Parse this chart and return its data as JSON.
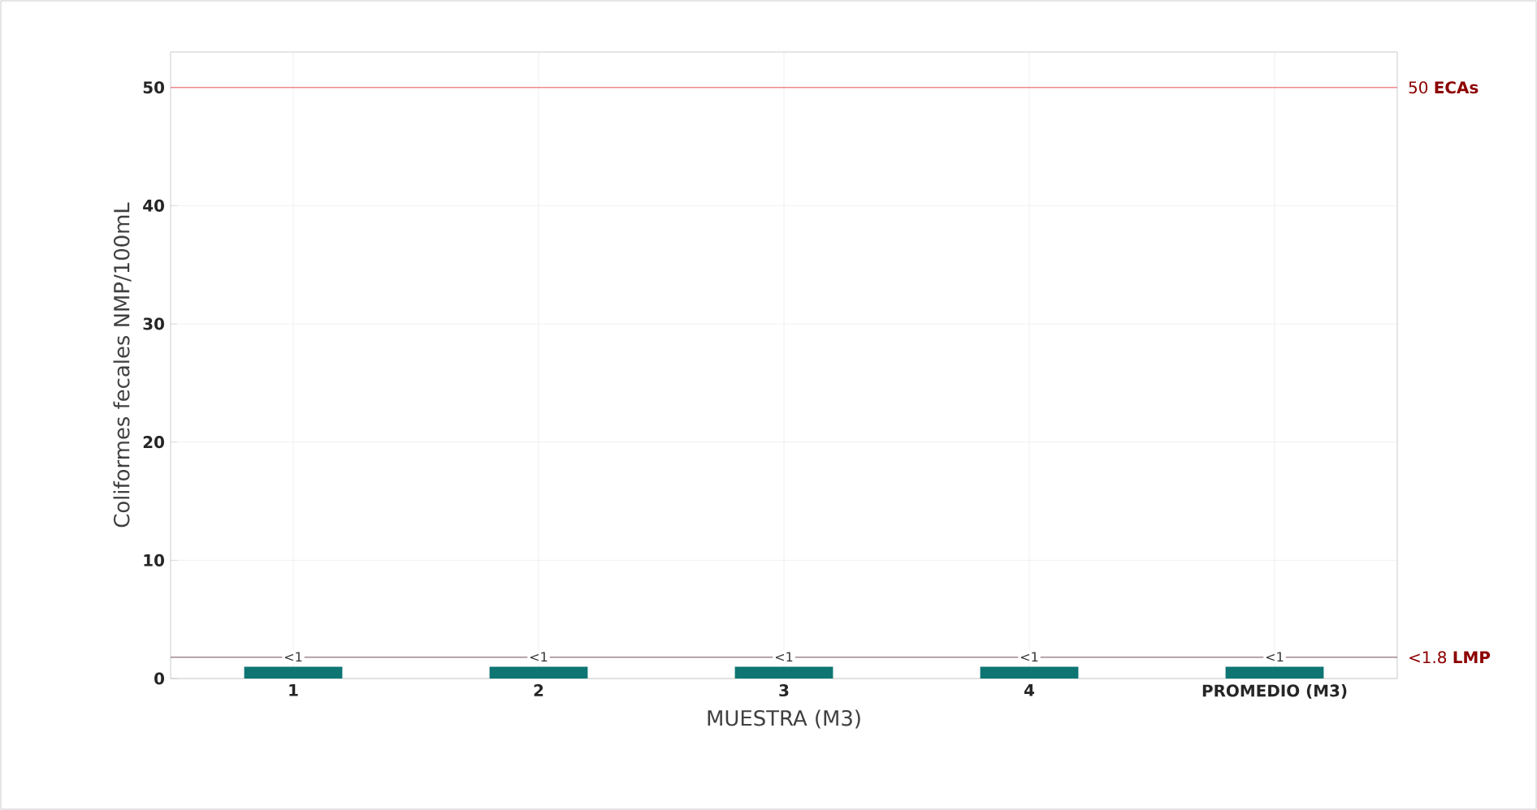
{
  "chart_data": {
    "type": "bar",
    "xlabel": "MUESTRA (M3)",
    "ylabel": "Coliformes fecales NMP/100mL",
    "categories": [
      "1",
      "2",
      "3",
      "4",
      "PROMEDIO (M3)"
    ],
    "values": [
      1,
      1,
      1,
      1,
      1
    ],
    "value_labels": [
      "<1",
      "<1",
      "<1",
      "<1",
      "<1"
    ],
    "color": "#0e7572",
    "ylim": [
      0,
      53
    ],
    "yticks": [
      0,
      10,
      20,
      30,
      40,
      50
    ],
    "ref_lines": [
      {
        "axis": "y",
        "value": 50,
        "label": "50  **ECAs**",
        "color": "#ec8b8f",
        "line_style": "solid"
      },
      {
        "axis": "y",
        "value": 1.8,
        "label": "<1.8  **LMP**",
        "color": "#a08592",
        "line_style": "solid"
      }
    ],
    "grid": true
  }
}
